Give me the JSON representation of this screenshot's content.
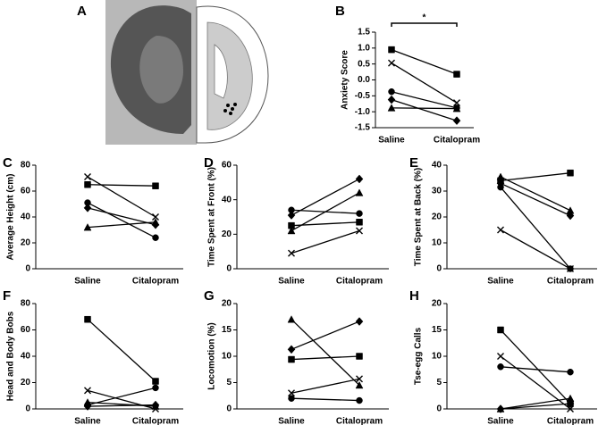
{
  "image_panel": {
    "label": "A"
  },
  "chart_data": [
    {
      "type": "line",
      "panel": "B",
      "ylabel": "Anxiety Score",
      "categories": [
        "Saline",
        "Citalopram"
      ],
      "ylim": [
        -1.5,
        1.5
      ],
      "yticks": [
        -1.5,
        {
          "value": -1.0,
          "label": "-1.0"
        },
        -0.5,
        {
          "value": 0.0,
          "label": "0.0"
        },
        0.5,
        {
          "value": 1.0,
          "label": "1.0"
        },
        1.5
      ],
      "annotation": "*",
      "color": "#000000",
      "series": [
        {
          "marker": "square",
          "values": [
            0.95,
            0.18
          ]
        },
        {
          "marker": "x",
          "values": [
            0.53,
            -0.72
          ]
        },
        {
          "marker": "circle",
          "values": [
            -0.37,
            -0.88
          ]
        },
        {
          "marker": "diamond",
          "values": [
            -0.62,
            -1.28
          ]
        },
        {
          "marker": "triangle",
          "values": [
            -0.88,
            -0.9
          ]
        }
      ]
    },
    {
      "type": "line",
      "panel": "C",
      "ylabel": "Average Height (cm)",
      "categories": [
        "Saline",
        "Citalopram"
      ],
      "ylim": [
        0,
        80
      ],
      "yticks": [
        0,
        20,
        40,
        60,
        80
      ],
      "color": "#000000",
      "series": [
        {
          "marker": "x",
          "values": [
            71,
            40
          ]
        },
        {
          "marker": "square",
          "values": [
            65,
            64
          ]
        },
        {
          "marker": "circle",
          "values": [
            51,
            24
          ]
        },
        {
          "marker": "diamond",
          "values": [
            47,
            34
          ]
        },
        {
          "marker": "triangle",
          "values": [
            32,
            36
          ]
        }
      ]
    },
    {
      "type": "line",
      "panel": "D",
      "ylabel": "Time Spent at Front (%)",
      "categories": [
        "Saline",
        "Citalopram"
      ],
      "ylim": [
        0,
        60
      ],
      "yticks": [
        0,
        20,
        40,
        60
      ],
      "color": "#000000",
      "series": [
        {
          "marker": "circle",
          "values": [
            34,
            32
          ]
        },
        {
          "marker": "diamond",
          "values": [
            31,
            52
          ]
        },
        {
          "marker": "square",
          "values": [
            25,
            27
          ]
        },
        {
          "marker": "triangle",
          "values": [
            22,
            44
          ]
        },
        {
          "marker": "x",
          "values": [
            9,
            22
          ]
        }
      ]
    },
    {
      "type": "line",
      "panel": "E",
      "ylabel": "Time Spent at Back (%)",
      "categories": [
        "Saline",
        "Citalopram"
      ],
      "ylim": [
        0,
        40
      ],
      "yticks": [
        0,
        10,
        20,
        30,
        40
      ],
      "color": "#000000",
      "series": [
        {
          "marker": "triangle",
          "values": [
            35.5,
            22.5
          ]
        },
        {
          "marker": "square",
          "values": [
            34,
            37
          ]
        },
        {
          "marker": "diamond",
          "values": [
            33,
            20.5
          ]
        },
        {
          "marker": "circle",
          "values": [
            31.5,
            0
          ]
        },
        {
          "marker": "x",
          "values": [
            15,
            0
          ]
        }
      ]
    },
    {
      "type": "line",
      "panel": "F",
      "ylabel": "Head and Body Bobs",
      "categories": [
        "Saline",
        "Citalopram"
      ],
      "ylim": [
        0,
        80
      ],
      "yticks": [
        0,
        20,
        40,
        60,
        80
      ],
      "color": "#000000",
      "series": [
        {
          "marker": "square",
          "values": [
            68,
            21
          ]
        },
        {
          "marker": "x",
          "values": [
            14,
            0
          ]
        },
        {
          "marker": "circle",
          "values": [
            3,
            16
          ]
        },
        {
          "marker": "triangle",
          "values": [
            5,
            2
          ]
        },
        {
          "marker": "diamond",
          "values": [
            2,
            3
          ]
        }
      ]
    },
    {
      "type": "line",
      "panel": "G",
      "ylabel": "Locomotion (%)",
      "categories": [
        "Saline",
        "Citalopram"
      ],
      "ylim": [
        0,
        20
      ],
      "yticks": [
        0,
        5,
        10,
        15,
        20
      ],
      "color": "#000000",
      "series": [
        {
          "marker": "triangle",
          "values": [
            17,
            4.5
          ]
        },
        {
          "marker": "diamond",
          "values": [
            11.3,
            16.6
          ]
        },
        {
          "marker": "square",
          "values": [
            9.4,
            10
          ]
        },
        {
          "marker": "x",
          "values": [
            3,
            5.7
          ]
        },
        {
          "marker": "circle",
          "values": [
            2,
            1.6
          ]
        }
      ]
    },
    {
      "type": "line",
      "panel": "H",
      "ylabel": "Tse-egg Calls",
      "categories": [
        "Saline",
        "Citalopram"
      ],
      "ylim": [
        0,
        20
      ],
      "yticks": [
        0,
        5,
        10,
        15,
        20
      ],
      "color": "#000000",
      "series": [
        {
          "marker": "square",
          "values": [
            15,
            1
          ]
        },
        {
          "marker": "x",
          "values": [
            10,
            0
          ]
        },
        {
          "marker": "circle",
          "values": [
            8,
            7
          ]
        },
        {
          "marker": "triangle",
          "values": [
            0,
            2
          ]
        },
        {
          "marker": "diamond",
          "values": [
            0,
            1
          ]
        }
      ]
    }
  ]
}
